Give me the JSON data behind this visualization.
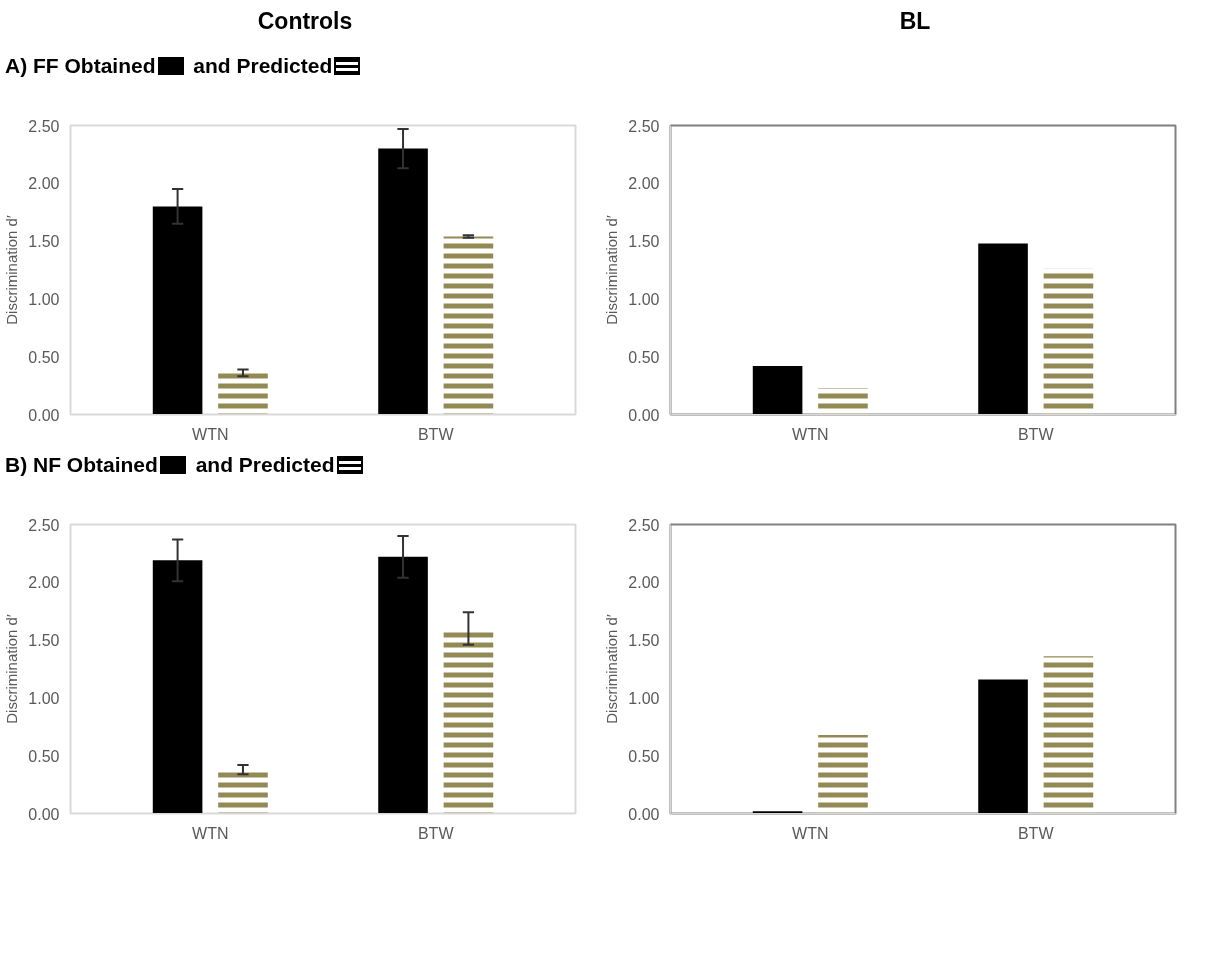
{
  "chart_data": [
    {
      "type": "bar",
      "title": "Controls",
      "categories": [
        "WTN",
        "BTW"
      ],
      "ylabel": "Discrimination d′",
      "ylim": [
        0,
        2.5
      ],
      "yticks": [
        {
          "value": 0,
          "label": "0.00"
        },
        {
          "value": 0.5,
          "label": "0.50"
        },
        {
          "value": 1,
          "label": "1.00"
        },
        {
          "value": 1.5,
          "label": "1.50"
        },
        {
          "value": 2,
          "label": "2.00"
        },
        {
          "value": 2.5,
          "label": "2.50"
        }
      ],
      "legend": "top left",
      "series": [
        {
          "name": "A) FF Obtained",
          "color": "#000000",
          "values": [
            1.8,
            2.3
          ],
          "errors": [
            0.15,
            0.17
          ]
        },
        {
          "name": "and Predicted",
          "color": "#938953",
          "values": [
            0.36,
            1.54
          ],
          "errors": [
            0.03,
            0.01
          ]
        }
      ]
    },
    {
      "type": "bar",
      "title": "BL",
      "categories": [
        "WTN",
        "BTW"
      ],
      "ylabel": "Discrimination d′",
      "ylim": [
        0,
        2.5
      ],
      "yticks": [
        {
          "value": 0,
          "label": "0.00"
        },
        {
          "value": 0.5,
          "label": "0.50"
        },
        {
          "value": 1,
          "label": "1.00"
        },
        {
          "value": 1.5,
          "label": "1.50"
        },
        {
          "value": 2,
          "label": "2.00"
        },
        {
          "value": 2.5,
          "label": "2.50"
        }
      ],
      "series": [
        {
          "color": "#000000",
          "values": [
            0.42,
            1.48
          ]
        },
        {
          "color": "#938953",
          "values": [
            0.23,
            1.26
          ]
        }
      ]
    },
    {
      "type": "bar",
      "categories": [
        "WTN",
        "BTW"
      ],
      "ylabel": "Discrimination d′",
      "ylim": [
        0,
        2.5
      ],
      "yticks": [
        {
          "value": 0,
          "label": "0.00"
        },
        {
          "value": 0.5,
          "label": "0.50"
        },
        {
          "value": 1,
          "label": "1.00"
        },
        {
          "value": 1.5,
          "label": "1.50"
        },
        {
          "value": 2,
          "label": "2.00"
        },
        {
          "value": 2.5,
          "label": "2.50"
        }
      ],
      "legend": "top left",
      "series": [
        {
          "name": "B) NF Obtained",
          "color": "#000000",
          "values": [
            2.19,
            2.22
          ],
          "errors": [
            0.18,
            0.18
          ]
        },
        {
          "name": "and Predicted",
          "color": "#938953",
          "values": [
            0.38,
            1.6
          ],
          "errors": [
            0.04,
            0.14
          ]
        }
      ]
    },
    {
      "type": "bar",
      "categories": [
        "WTN",
        "BTW"
      ],
      "ylabel": "Discrimination d′",
      "ylim": [
        0,
        2.5
      ],
      "yticks": [
        {
          "value": 0,
          "label": "0.00"
        },
        {
          "value": 0.5,
          "label": "0.50"
        },
        {
          "value": 1,
          "label": "1.00"
        },
        {
          "value": 1.5,
          "label": "1.50"
        },
        {
          "value": 2,
          "label": "2.00"
        },
        {
          "value": 2.5,
          "label": "2.50"
        }
      ],
      "series": [
        {
          "color": "#000000",
          "values": [
            0.02,
            1.16
          ]
        },
        {
          "color": "#938953",
          "values": [
            0.68,
            1.36
          ]
        }
      ]
    }
  ]
}
